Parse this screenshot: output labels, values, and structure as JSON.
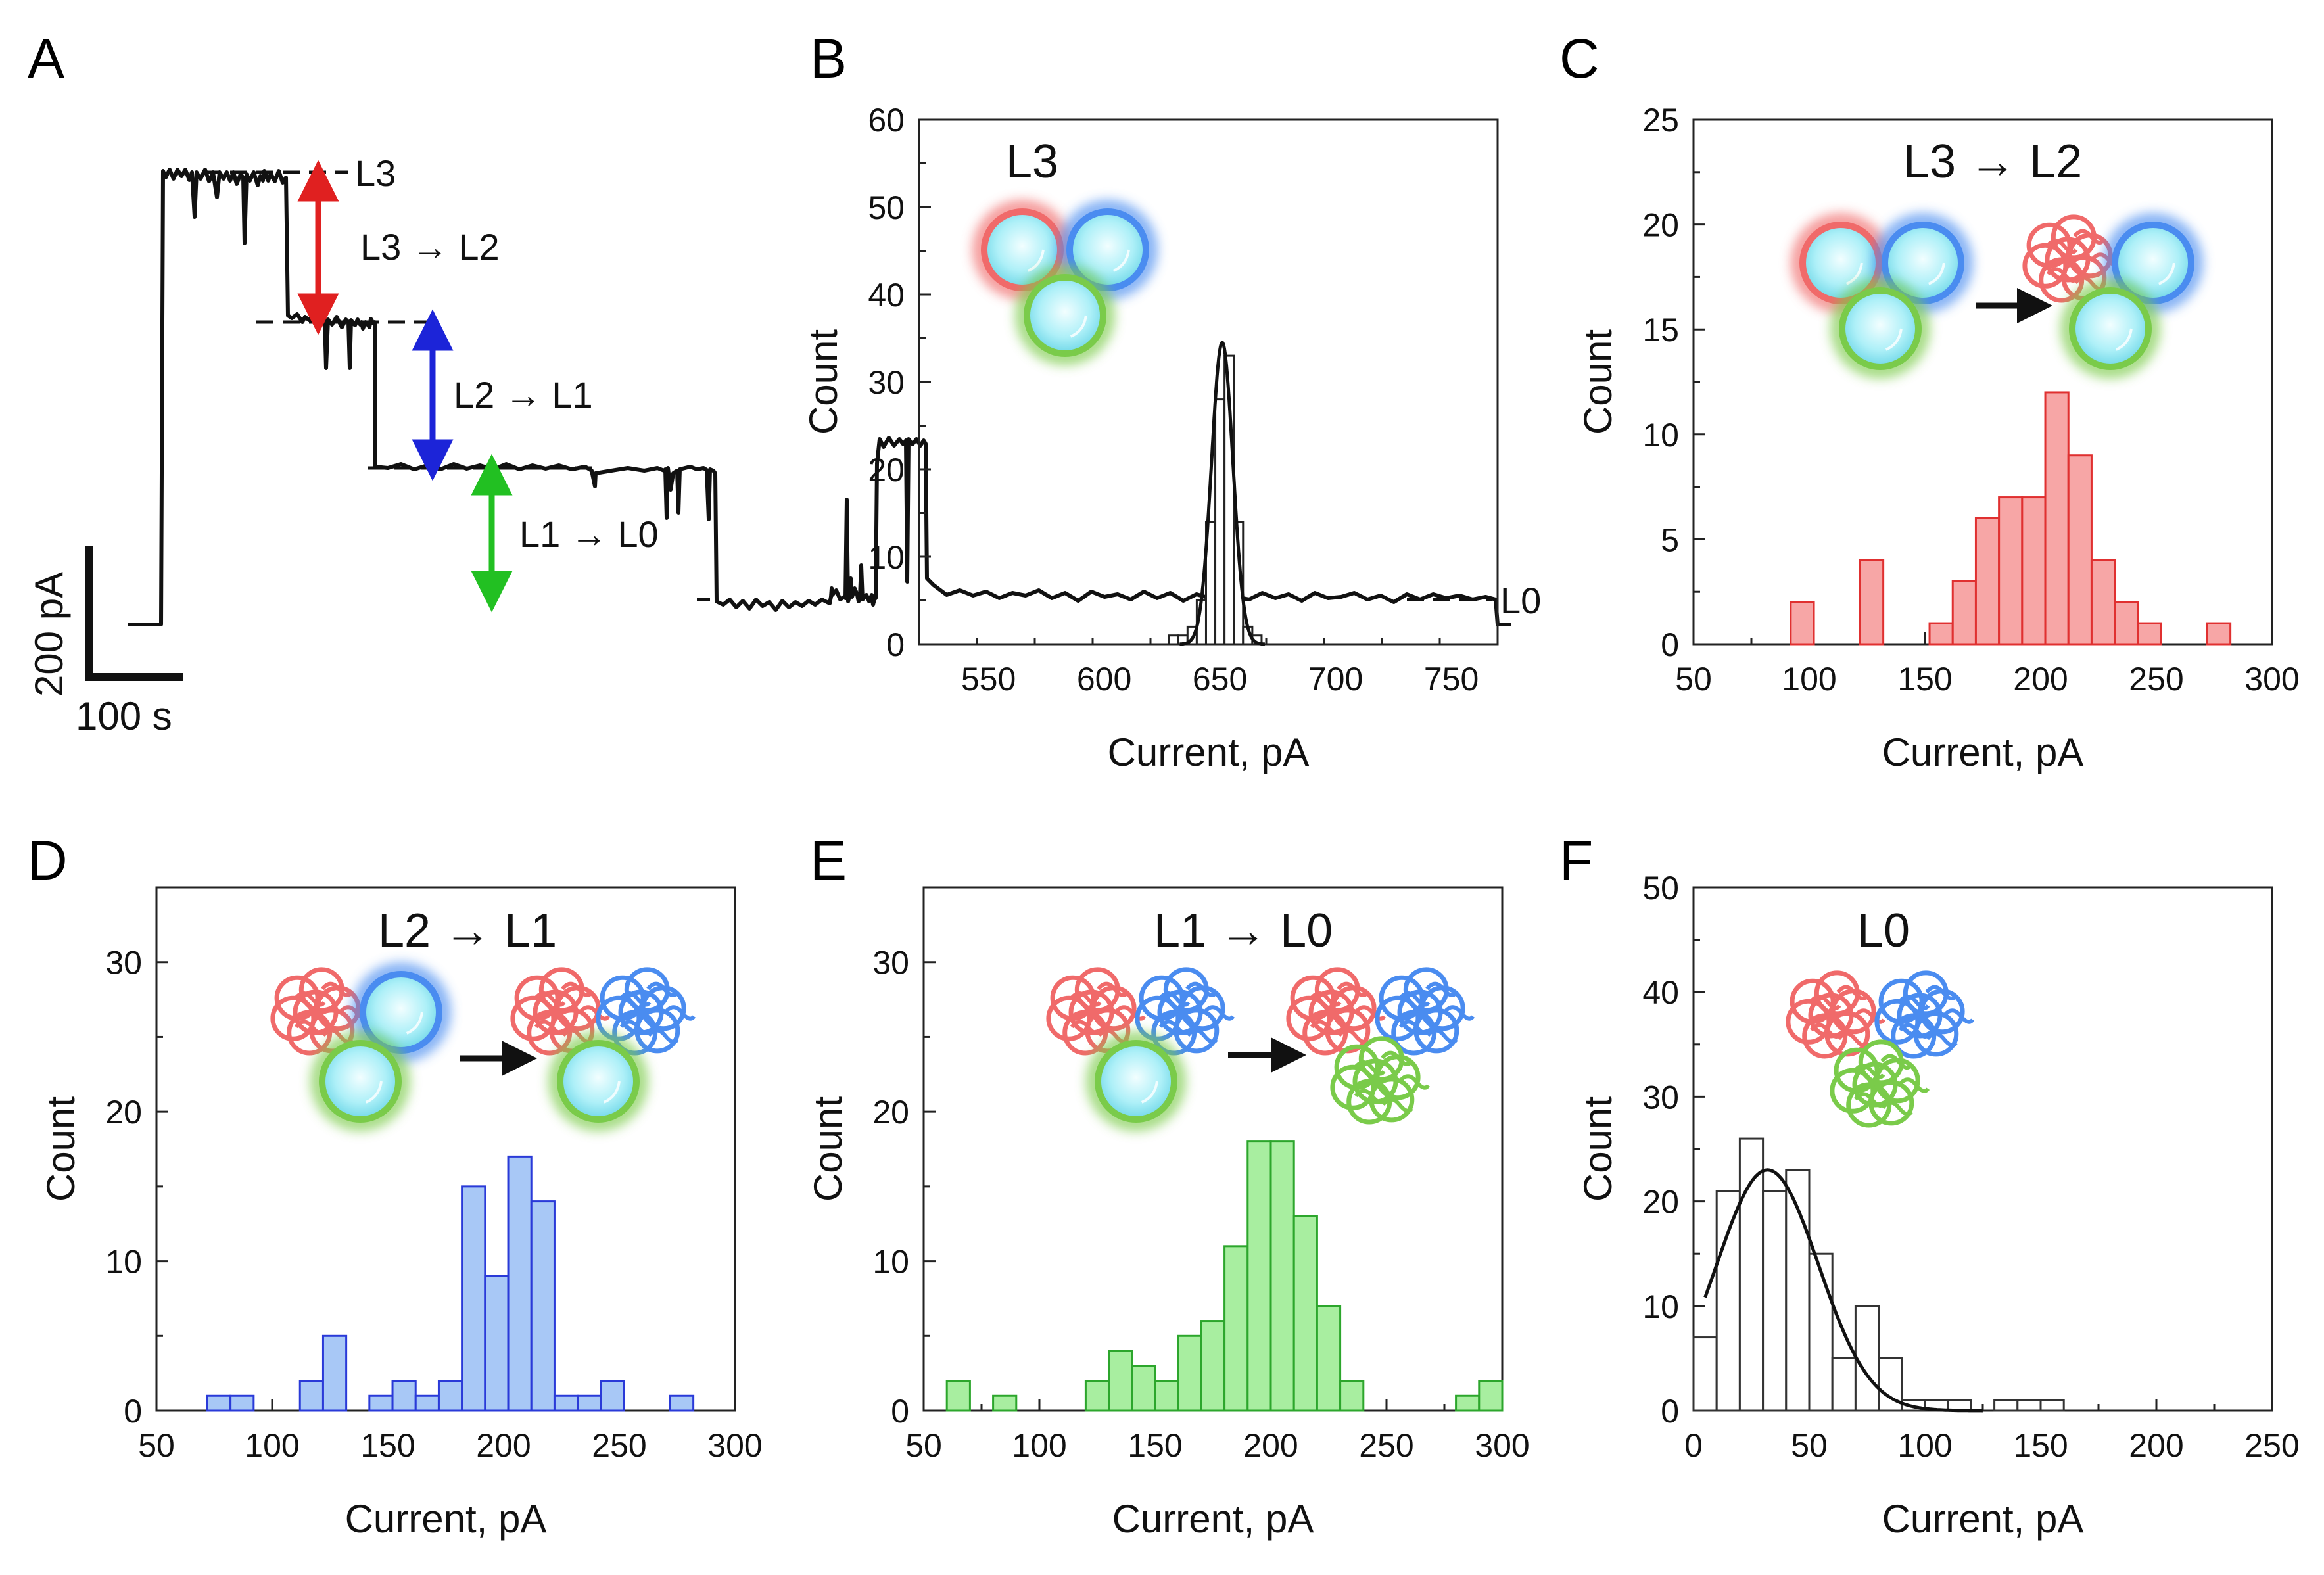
{
  "panels": {
    "A": {
      "label": "A"
    },
    "B": {
      "label": "B"
    },
    "C": {
      "label": "C"
    },
    "D": {
      "label": "D"
    },
    "E": {
      "label": "E"
    },
    "F": {
      "label": "F"
    }
  },
  "trace": {
    "levels": [
      "L3",
      "L2",
      "L1",
      "L0"
    ],
    "transitions": [
      "L3 → L2",
      "L2 → L1",
      "L1 → L0"
    ],
    "scalebar": {
      "current": "200 pA",
      "time": "100 s"
    },
    "colors": {
      "L3_L2": "#e02020",
      "L2_L1": "#1c24d8",
      "L1_L0": "#22c022"
    }
  },
  "chart_data": [
    {
      "id": "B",
      "type": "bar",
      "title": "L3",
      "xlabel": "Current, pA",
      "ylabel": "Count",
      "xlim": [
        520,
        770
      ],
      "ylim": [
        0,
        60
      ],
      "xticks": [
        550,
        600,
        650,
        700,
        750
      ],
      "yticks": [
        0,
        10,
        20,
        30,
        40,
        50,
        60
      ],
      "bin_width": 4,
      "bins": [
        [
          628,
          1
        ],
        [
          632,
          1
        ],
        [
          636,
          2
        ],
        [
          640,
          5
        ],
        [
          644,
          14
        ],
        [
          648,
          28
        ],
        [
          652,
          33
        ],
        [
          656,
          14
        ],
        [
          660,
          2
        ],
        [
          664,
          1
        ]
      ],
      "color": "#ffffff",
      "fit": {
        "type": "gaussian",
        "amplitude": 34.5,
        "mean": 651,
        "sigma": 4.6
      }
    },
    {
      "id": "C",
      "type": "bar",
      "title": "L3 → L2",
      "xlabel": "Current, pA",
      "ylabel": "Count",
      "xlim": [
        50,
        300
      ],
      "ylim": [
        0,
        25
      ],
      "xticks": [
        50,
        100,
        150,
        200,
        250,
        300
      ],
      "yticks": [
        0,
        5,
        10,
        15,
        20,
        25
      ],
      "bin_width": 10,
      "bins": [
        [
          92,
          2
        ],
        [
          122,
          4
        ],
        [
          152,
          1
        ],
        [
          162,
          3
        ],
        [
          172,
          6
        ],
        [
          182,
          7
        ],
        [
          192,
          7
        ],
        [
          202,
          12
        ],
        [
          212,
          9
        ],
        [
          222,
          4
        ],
        [
          232,
          2
        ],
        [
          242,
          1
        ],
        [
          272,
          1
        ]
      ],
      "color": "#f7a6a6",
      "edge": "#e03030"
    },
    {
      "id": "D",
      "type": "bar",
      "title": "L2 → L1",
      "xlabel": "Current, pA",
      "ylabel": "Count",
      "xlim": [
        50,
        300
      ],
      "ylim": [
        0,
        35
      ],
      "xticks": [
        50,
        100,
        150,
        200,
        250,
        300
      ],
      "yticks": [
        0,
        10,
        20,
        30
      ],
      "bin_width": 10,
      "bins": [
        [
          72,
          1
        ],
        [
          82,
          1
        ],
        [
          112,
          2
        ],
        [
          122,
          5
        ],
        [
          142,
          1
        ],
        [
          152,
          2
        ],
        [
          162,
          1
        ],
        [
          172,
          2
        ],
        [
          182,
          15
        ],
        [
          192,
          9
        ],
        [
          202,
          17
        ],
        [
          212,
          14
        ],
        [
          222,
          1
        ],
        [
          232,
          1
        ],
        [
          242,
          2
        ],
        [
          272,
          1
        ]
      ],
      "color": "#a8c8f6",
      "edge": "#2a3ad8"
    },
    {
      "id": "E",
      "type": "bar",
      "title": "L1 → L0",
      "xlabel": "Current, pA",
      "ylabel": "Count",
      "xlim": [
        50,
        300
      ],
      "ylim": [
        0,
        35
      ],
      "xticks": [
        50,
        100,
        150,
        200,
        250,
        300
      ],
      "yticks": [
        0,
        10,
        20,
        30
      ],
      "bin_width": 10,
      "bins": [
        [
          60,
          2
        ],
        [
          80,
          1
        ],
        [
          120,
          2
        ],
        [
          130,
          4
        ],
        [
          140,
          3
        ],
        [
          150,
          2
        ],
        [
          160,
          5
        ],
        [
          170,
          6
        ],
        [
          180,
          11
        ],
        [
          190,
          18
        ],
        [
          200,
          18
        ],
        [
          210,
          13
        ],
        [
          220,
          7
        ],
        [
          230,
          2
        ],
        [
          280,
          1
        ],
        [
          290,
          2
        ]
      ],
      "color": "#a8eea0",
      "edge": "#2ca62c"
    },
    {
      "id": "F",
      "type": "bar",
      "title": "L0",
      "xlabel": "Current, pA",
      "ylabel": "Count",
      "xlim": [
        0,
        250
      ],
      "ylim": [
        0,
        50
      ],
      "xticks": [
        0,
        50,
        100,
        150,
        200,
        250
      ],
      "yticks": [
        0,
        10,
        20,
        30,
        40,
        50
      ],
      "bin_width": 10,
      "bins": [
        [
          0,
          7
        ],
        [
          10,
          21
        ],
        [
          20,
          26
        ],
        [
          30,
          21
        ],
        [
          40,
          23
        ],
        [
          50,
          15
        ],
        [
          60,
          5
        ],
        [
          70,
          10
        ],
        [
          80,
          5
        ],
        [
          90,
          1
        ],
        [
          100,
          1
        ],
        [
          110,
          1
        ],
        [
          130,
          1
        ],
        [
          140,
          1
        ],
        [
          150,
          1
        ]
      ],
      "color": "#ffffff",
      "edge": "#333333",
      "fit": {
        "type": "gaussian",
        "amplitude": 23,
        "mean": 32,
        "sigma": 22,
        "xrange": [
          5,
          125
        ]
      }
    }
  ]
}
